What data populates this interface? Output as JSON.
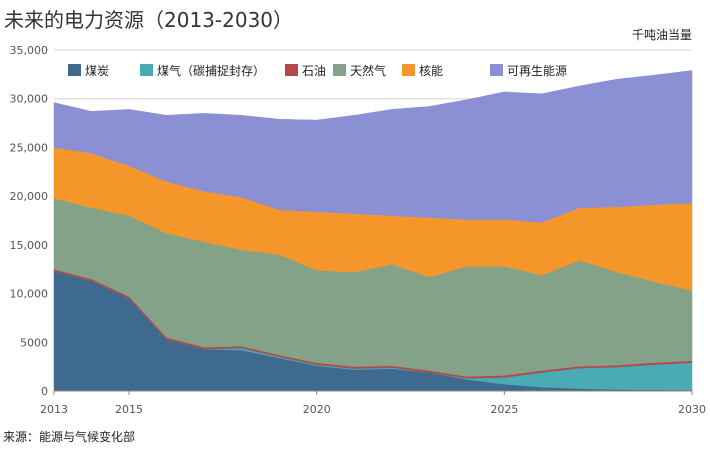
{
  "chart_data": {
    "type": "area",
    "stacked": true,
    "title": "未来的电力资源（2013-2030）",
    "unit_label": "千吨油当量",
    "source": "来源：能源与气候变化部",
    "x": [
      2013,
      2014,
      2015,
      2016,
      2017,
      2018,
      2019,
      2020,
      2021,
      2022,
      2023,
      2024,
      2025,
      2026,
      2027,
      2028,
      2029,
      2030
    ],
    "x_ticks": [
      2013,
      2015,
      2020,
      2025,
      2030
    ],
    "y_ticks": [
      0,
      5000,
      10000,
      15000,
      20000,
      25000,
      30000,
      35000
    ],
    "y_tick_labels": [
      "0",
      "5000",
      "10,000",
      "15,000",
      "20,000",
      "25,000",
      "30,000",
      "35,000"
    ],
    "ylim": [
      0,
      35000
    ],
    "xlim": [
      2013,
      2030
    ],
    "legend_position": "top-left",
    "series": [
      {
        "name": "煤炭",
        "color": "#3f6a8f",
        "values": [
          12300,
          11300,
          9500,
          5300,
          4300,
          4200,
          3400,
          2600,
          2200,
          2300,
          1900,
          1200,
          700,
          400,
          250,
          150,
          120,
          100
        ]
      },
      {
        "name": "煤气（碳捕捉封存）",
        "color": "#4aabb4",
        "values": [
          0,
          0,
          0,
          0,
          0,
          200,
          100,
          100,
          100,
          100,
          0,
          100,
          700,
          1500,
          2100,
          2300,
          2600,
          2800
        ]
      },
      {
        "name": "石油",
        "color": "#b24a4a",
        "values": [
          200,
          200,
          200,
          200,
          200,
          200,
          200,
          200,
          200,
          200,
          200,
          200,
          200,
          200,
          200,
          200,
          200,
          200
        ]
      },
      {
        "name": "天然气",
        "color": "#84a288",
        "values": [
          7300,
          7300,
          8300,
          10700,
          10800,
          9900,
          10300,
          9500,
          9700,
          10400,
          9600,
          11300,
          11200,
          9800,
          10850,
          9550,
          8300,
          7200
        ]
      },
      {
        "name": "核能",
        "color": "#f5962b",
        "values": [
          5200,
          5600,
          5100,
          5300,
          5200,
          5400,
          4600,
          6000,
          6000,
          5000,
          6100,
          4800,
          4800,
          5400,
          5400,
          6700,
          7900,
          9000
        ]
      },
      {
        "name": "可再生能源",
        "color": "#8b8fd3",
        "values": [
          4600,
          4300,
          5800,
          6800,
          8000,
          8400,
          9300,
          9400,
          10100,
          10900,
          11400,
          12300,
          13100,
          13200,
          12500,
          13100,
          13300,
          13600
        ]
      }
    ]
  }
}
